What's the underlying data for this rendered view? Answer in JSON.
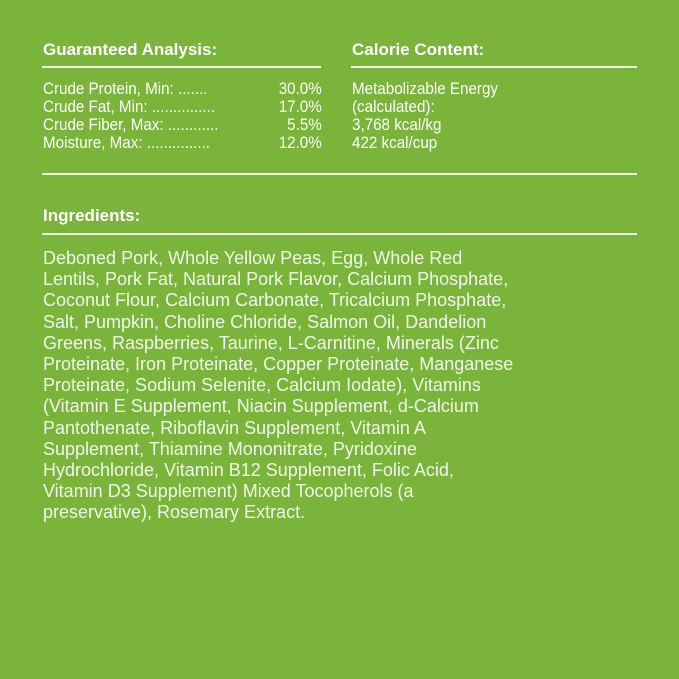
{
  "analysis": {
    "title": "Guaranteed Analysis:",
    "rows": [
      {
        "label": "Crude Protein, Min: .......",
        "value": "30.0%"
      },
      {
        "label": "Crude Fat, Min: ...............",
        "value": "17.0%"
      },
      {
        "label": "Crude Fiber, Max: ............",
        "value": "5.5%"
      },
      {
        "label": "Moisture, Max: ...............",
        "value": "12.0%"
      }
    ]
  },
  "calorie": {
    "title": "Calorie Content:",
    "lines": [
      "Metabolizable Energy",
      "(calculated):",
      "3,768 kcal/kg",
      "422 kcal/cup"
    ]
  },
  "ingredients": {
    "title": "Ingredients:",
    "lines": [
      "Deboned Pork, Whole Yellow Peas, Egg, Whole Red",
      "Lentils, Pork Fat, Natural Pork Flavor, Calcium Phosphate,",
      "Coconut Flour, Calcium Carbonate, Tricalcium Phosphate,",
      "Salt, Pumpkin, Choline Chloride, Salmon Oil, Dandelion",
      "Greens, Raspberries, Taurine, L-Carnitine, Minerals (Zinc",
      "Proteinate, Iron Proteinate, Copper Proteinate, Manganese",
      "Proteinate, Sodium Selenite, Calcium Iodate), Vitamins",
      "(Vitamin E Supplement, Niacin Supplement, d-Calcium",
      "Pantothenate, Riboflavin Supplement, Vitamin A",
      "Supplement, Thiamine Mononitrate, Pyridoxine",
      "Hydrochloride, Vitamin B12 Supplement, Folic Acid,",
      "Vitamin D3 Supplement) Mixed Tocopherols (a",
      "preservative), Rosemary Extract."
    ]
  },
  "colors": {
    "background": "#7ab43a",
    "text": "#ffffff"
  }
}
